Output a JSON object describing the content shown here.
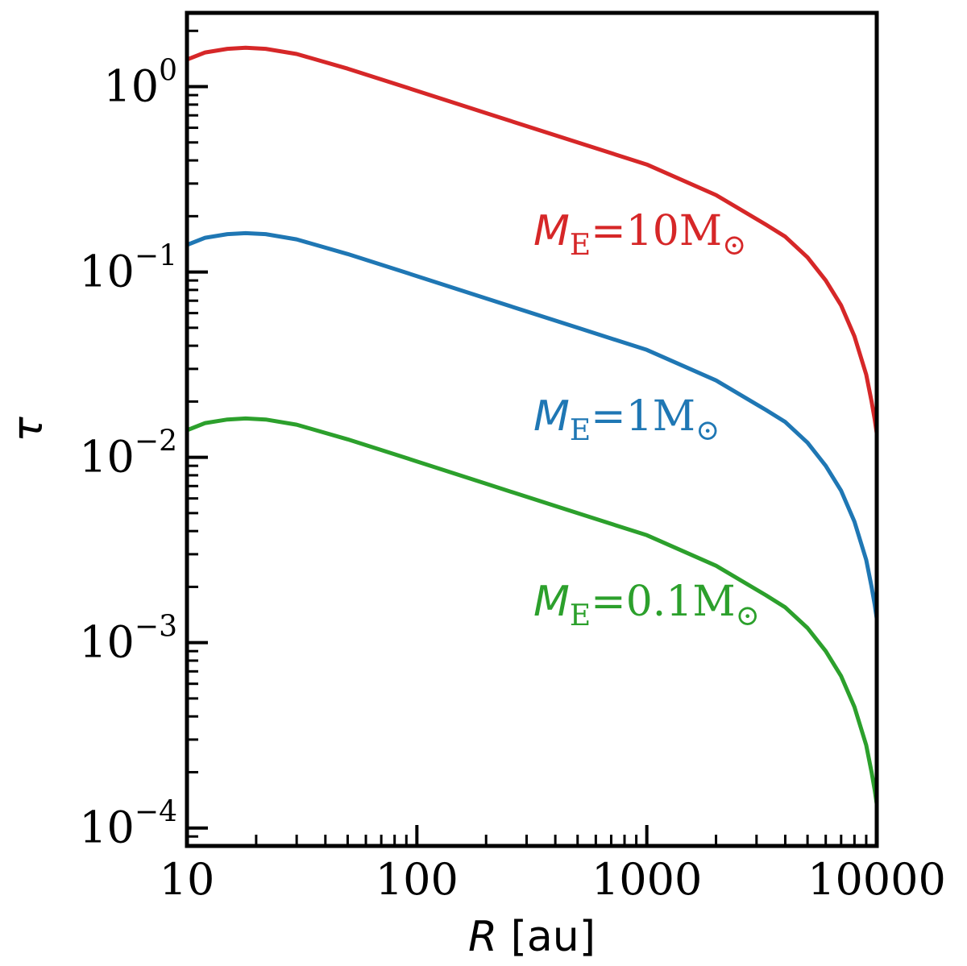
{
  "chart_data": {
    "type": "line",
    "title": "",
    "xlabel": {
      "symbol": "R",
      "unit": " [au]"
    },
    "ylabel": "τ",
    "xscale": "log",
    "yscale": "log",
    "xlim": [
      10,
      10000
    ],
    "ylim": [
      8e-05,
      2.5
    ],
    "grid": false,
    "legend": "none",
    "x_ticks": [
      {
        "value": 10,
        "label": "10"
      },
      {
        "value": 100,
        "label": "100"
      },
      {
        "value": 1000,
        "label": "1000"
      },
      {
        "value": 10000,
        "label": "10000"
      }
    ],
    "y_ticks": [
      {
        "value": 1,
        "base": "10",
        "exp": "0"
      },
      {
        "value": 0.1,
        "base": "10",
        "exp": "−1"
      },
      {
        "value": 0.01,
        "base": "10",
        "exp": "−2"
      },
      {
        "value": 0.001,
        "base": "10",
        "exp": "−3"
      },
      {
        "value": 0.0001,
        "base": "10",
        "exp": "−4"
      }
    ],
    "series": [
      {
        "color": "#d62728",
        "label": {
          "sym": "M",
          "sub": "E",
          "rest": "=10M",
          "sun": "⊙"
        },
        "x": [
          10,
          12,
          15,
          18,
          22,
          30,
          50,
          100,
          200,
          500,
          1000,
          2000,
          3300,
          4000,
          5000,
          6000,
          7000,
          8000,
          9000,
          9500,
          9800,
          10000
        ],
        "y": [
          1.4,
          1.53,
          1.6,
          1.62,
          1.6,
          1.5,
          1.25,
          0.95,
          0.72,
          0.5,
          0.38,
          0.26,
          0.18,
          0.155,
          0.12,
          0.09,
          0.066,
          0.045,
          0.028,
          0.02,
          0.016,
          0.0135
        ]
      },
      {
        "color": "#1f77b4",
        "label": {
          "sym": "M",
          "sub": "E",
          "rest": "=1M",
          "sun": "⊙"
        },
        "x": [
          10,
          12,
          15,
          18,
          22,
          30,
          50,
          100,
          200,
          500,
          1000,
          2000,
          3300,
          4000,
          5000,
          6000,
          7000,
          8000,
          9000,
          9500,
          9800,
          10000
        ],
        "y": [
          0.14,
          0.153,
          0.16,
          0.162,
          0.16,
          0.15,
          0.125,
          0.095,
          0.072,
          0.05,
          0.038,
          0.026,
          0.018,
          0.0155,
          0.012,
          0.009,
          0.0066,
          0.0045,
          0.0028,
          0.002,
          0.0016,
          0.00135
        ]
      },
      {
        "color": "#2ca02c",
        "label": {
          "sym": "M",
          "sub": "E",
          "rest": "=0.1M",
          "sun": "⊙"
        },
        "x": [
          10,
          12,
          15,
          18,
          22,
          30,
          50,
          100,
          200,
          500,
          1000,
          2000,
          3300,
          4000,
          5000,
          6000,
          7000,
          8000,
          9000,
          9500,
          9800,
          10000
        ],
        "y": [
          0.014,
          0.0153,
          0.016,
          0.0162,
          0.016,
          0.015,
          0.0125,
          0.0095,
          0.0072,
          0.005,
          0.0038,
          0.0026,
          0.0018,
          0.00155,
          0.0012,
          0.0009,
          0.00066,
          0.00045,
          0.00028,
          0.0002,
          0.00016,
          0.000135
        ]
      }
    ]
  }
}
